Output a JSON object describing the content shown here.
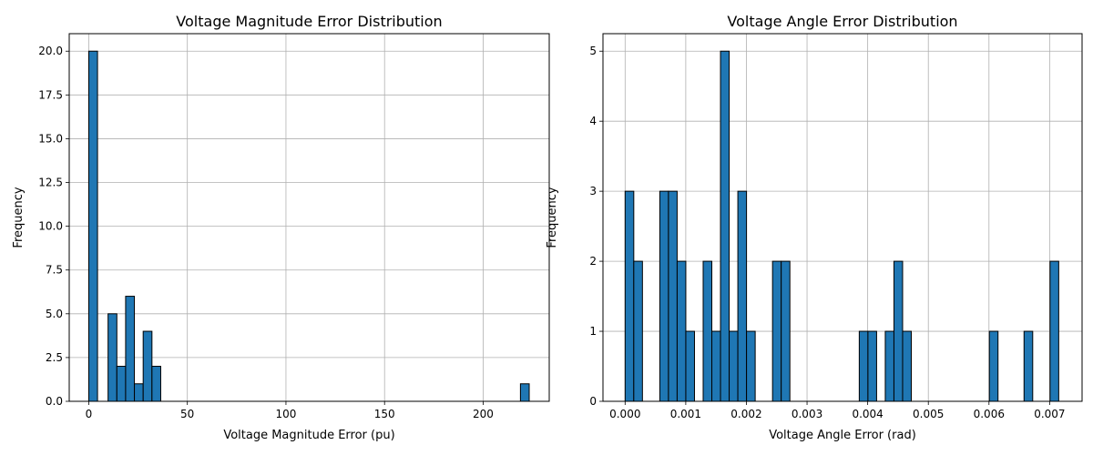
{
  "chart_data": [
    {
      "type": "bar",
      "title": "Voltage Magnitude Error Distribution",
      "xlabel": "Voltage Magnitude Error (pu)",
      "ylabel": "Frequency",
      "xlim": [
        -9.9,
        233.5
      ],
      "ylim": [
        0,
        21
      ],
      "xticks": [
        0,
        50,
        100,
        150,
        200
      ],
      "xtick_labels": [
        "0",
        "50",
        "100",
        "150",
        "200"
      ],
      "yticks": [
        0,
        2.5,
        5,
        7.5,
        10,
        12.5,
        15,
        17.5,
        20
      ],
      "ytick_labels": [
        "0.0",
        "2.5",
        "5.0",
        "7.5",
        "10.0",
        "12.5",
        "15.0",
        "17.5",
        "20.0"
      ],
      "grid": true,
      "bin_width": 4.45,
      "bins_x": [
        0.0,
        9.8,
        14.25,
        18.7,
        23.15,
        27.6,
        32.05,
        218.9
      ],
      "values": [
        20,
        5,
        2,
        6,
        1,
        4,
        2,
        1
      ],
      "bar_color": "#1f77b4",
      "edge_color": "#000000"
    },
    {
      "type": "bar",
      "title": "Voltage Angle Error Distribution",
      "xlabel": "Voltage Angle Error (rad)",
      "ylabel": "Frequency",
      "xlim": [
        -0.000365,
        0.007535
      ],
      "ylim": [
        0,
        5.25
      ],
      "xticks": [
        0,
        0.001,
        0.002,
        0.003,
        0.004,
        0.005,
        0.006,
        0.007
      ],
      "xtick_labels": [
        "0.000",
        "0.001",
        "0.002",
        "0.003",
        "0.004",
        "0.005",
        "0.006",
        "0.007"
      ],
      "yticks": [
        0,
        1,
        2,
        3,
        4,
        5
      ],
      "ytick_labels": [
        "0",
        "1",
        "2",
        "3",
        "4",
        "5"
      ],
      "grid": true,
      "bin_width": 0.000143,
      "bins_x": [
        0.0,
        0.000143,
        0.000572,
        0.000715,
        0.000858,
        0.001001,
        0.001287,
        0.00143,
        0.001573,
        0.001716,
        0.001859,
        0.002002,
        0.002431,
        0.002574,
        0.003861,
        0.004004,
        0.00429,
        0.004433,
        0.004576,
        0.006006,
        0.006578,
        0.007007
      ],
      "values": [
        3,
        2,
        3,
        3,
        2,
        1,
        2,
        1,
        5,
        1,
        3,
        1,
        2,
        2,
        1,
        1,
        1,
        2,
        1,
        1,
        1,
        2
      ],
      "bar_color": "#1f77b4",
      "edge_color": "#000000"
    }
  ]
}
